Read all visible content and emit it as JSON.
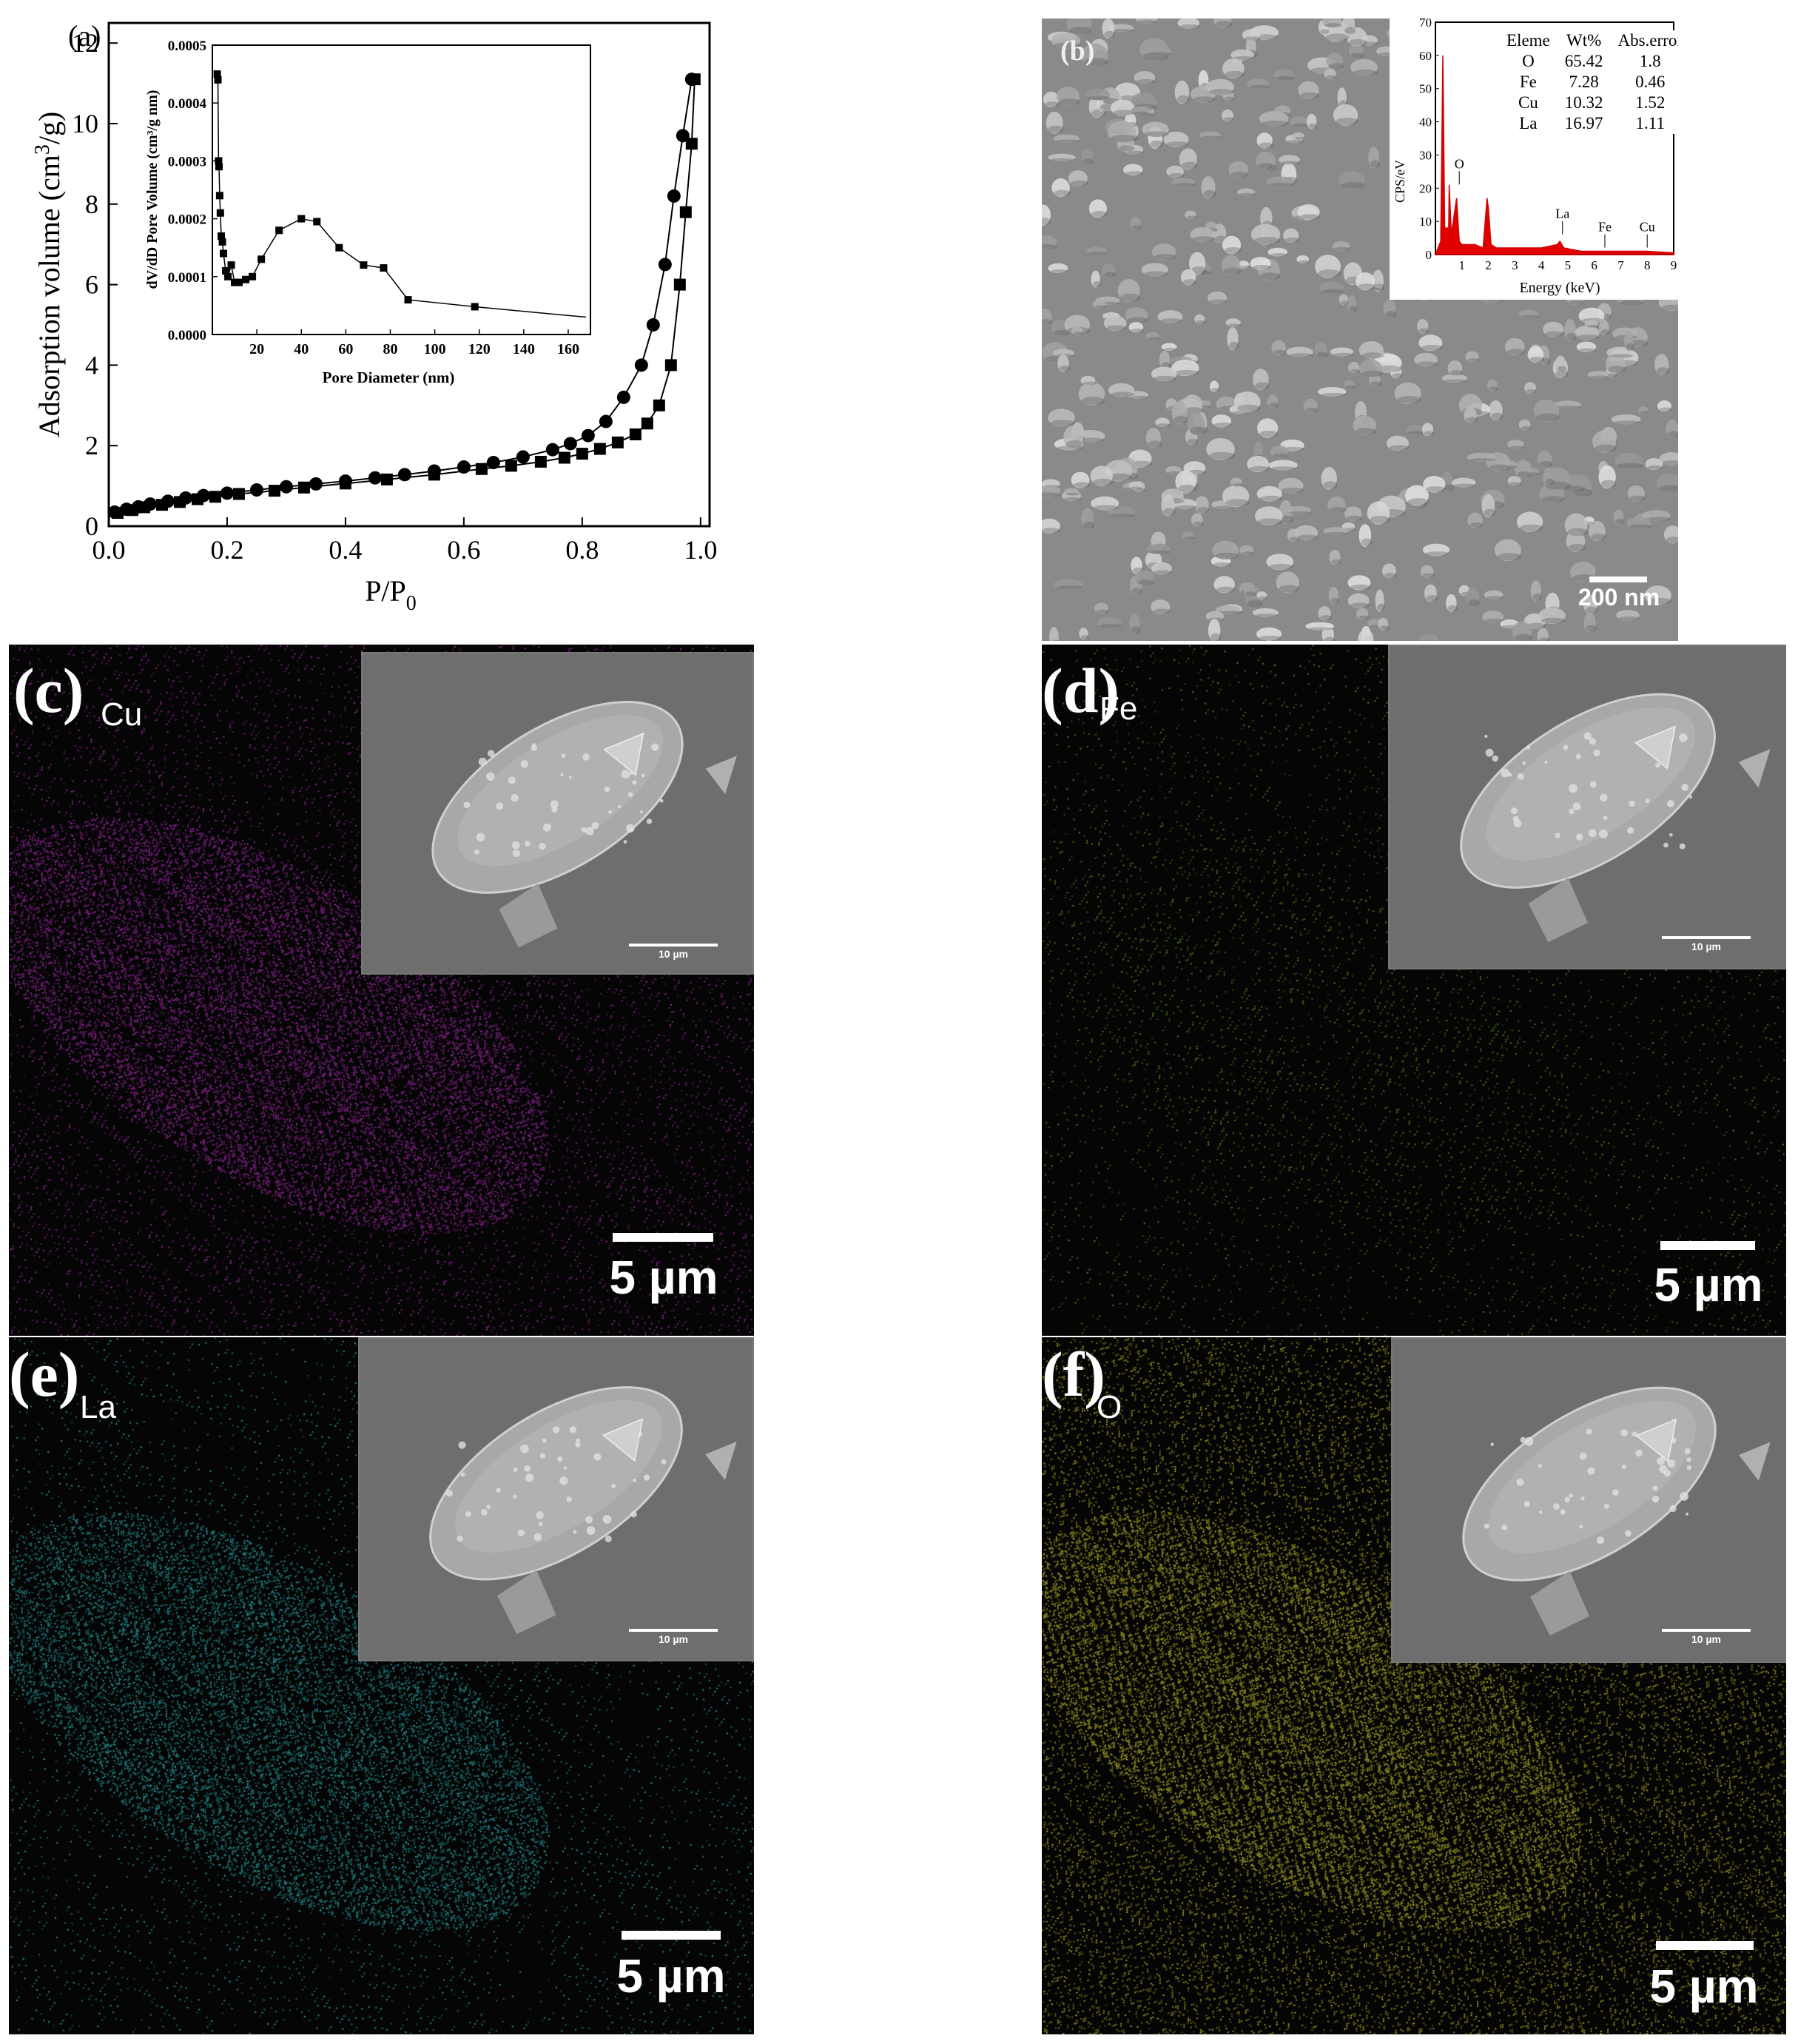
{
  "panel_a": {
    "letter": "(a)",
    "xlabel_main": "P/P",
    "xlabel_sub": "0",
    "ylabel_main": "Adsorption volume (cm",
    "ylabel_sup": "3",
    "ylabel_tail": "/g)",
    "x_ticks": [
      "0.0",
      "0.2",
      "0.4",
      "0.6",
      "0.8",
      "1.0"
    ],
    "y_ticks": [
      "0",
      "2",
      "4",
      "6",
      "8",
      "10",
      "12"
    ],
    "inset": {
      "xlabel": "Pore Diameter (nm)",
      "ylabel": "dV/dD Pore Volume (cm³/g nm)",
      "x_ticks": [
        "20",
        "40",
        "60",
        "80",
        "100",
        "120",
        "140",
        "160"
      ],
      "y_ticks": [
        "0.0000",
        "0.0001",
        "0.0002",
        "0.0003",
        "0.0004",
        "0.0005"
      ]
    }
  },
  "panel_b": {
    "letter": "(b)",
    "scale": "200 nm",
    "eds_headers": [
      "Eleme",
      "Wt%",
      "Abs.error"
    ],
    "eds_rows": [
      [
        "O",
        "65.42",
        "1.8"
      ],
      [
        "Fe",
        "7.28",
        "0.46"
      ],
      [
        "Cu",
        "10.32",
        "1.52"
      ],
      [
        "La",
        "16.97",
        "1.11"
      ]
    ],
    "eds_xlabel": "Energy (keV)",
    "eds_ylabel": "CPS/eV",
    "eds_x_ticks": [
      "1",
      "2",
      "3",
      "4",
      "5",
      "6",
      "7",
      "8",
      "9"
    ],
    "eds_y_ticks": [
      "0",
      "10",
      "20",
      "30",
      "40",
      "50",
      "60",
      "70"
    ],
    "eds_peak_labels": [
      "O",
      "La",
      "Fe",
      "Cu"
    ]
  },
  "maps": [
    {
      "letter": "(c)",
      "element": "Cu",
      "scale": "5 µm",
      "inset_scale": "10 µm",
      "color": "#a02aa8"
    },
    {
      "letter": "(d)",
      "element": "Fe",
      "scale": "5 µm",
      "inset_scale": "10 µm",
      "color": "#5c8a1e"
    },
    {
      "letter": "(e)",
      "element": "La",
      "scale": "5 µm",
      "inset_scale": "10 µm",
      "color": "#2ba5a8"
    },
    {
      "letter": "(f)",
      "element": "O",
      "scale": "5 µm",
      "inset_scale": "10 µm",
      "color": "#b8b22a"
    }
  ],
  "chart_data": [
    {
      "type": "scatter",
      "title": "",
      "xlabel": "P/P0",
      "ylabel": "Adsorption volume (cm3/g)",
      "xlim": [
        0,
        1.0
      ],
      "ylim": [
        0,
        12.5
      ],
      "series": [
        {
          "marker": "circle",
          "x": [
            0.01,
            0.03,
            0.05,
            0.07,
            0.1,
            0.13,
            0.16,
            0.2,
            0.25,
            0.3,
            0.35,
            0.4,
            0.45,
            0.5,
            0.55,
            0.6,
            0.65,
            0.7,
            0.75,
            0.78,
            0.81,
            0.84,
            0.87,
            0.9,
            0.92,
            0.94,
            0.955,
            0.97,
            0.985
          ],
          "y": [
            0.35,
            0.42,
            0.48,
            0.55,
            0.62,
            0.7,
            0.76,
            0.82,
            0.9,
            0.98,
            1.05,
            1.12,
            1.2,
            1.28,
            1.37,
            1.47,
            1.58,
            1.72,
            1.9,
            2.05,
            2.25,
            2.6,
            3.2,
            4.0,
            5.0,
            6.5,
            8.2,
            9.7,
            11.1
          ]
        },
        {
          "marker": "square",
          "x": [
            0.015,
            0.04,
            0.06,
            0.09,
            0.12,
            0.15,
            0.18,
            0.22,
            0.28,
            0.33,
            0.4,
            0.47,
            0.55,
            0.63,
            0.68,
            0.73,
            0.77,
            0.8,
            0.83,
            0.86,
            0.89,
            0.91,
            0.93,
            0.95,
            0.965,
            0.975,
            0.985,
            0.99
          ],
          "y": [
            0.33,
            0.4,
            0.47,
            0.53,
            0.6,
            0.67,
            0.73,
            0.8,
            0.88,
            0.96,
            1.06,
            1.16,
            1.28,
            1.42,
            1.5,
            1.6,
            1.7,
            1.8,
            1.92,
            2.08,
            2.28,
            2.55,
            3.0,
            4.0,
            6.0,
            7.8,
            9.5,
            11.1
          ]
        }
      ]
    },
    {
      "type": "line",
      "title": "",
      "xlabel": "Pore Diameter (nm)",
      "ylabel": "dV/dD Pore Volume (cm³/g nm)",
      "xlim": [
        0,
        170
      ],
      "ylim": [
        0,
        0.0005
      ],
      "series": [
        {
          "x": [
            2.2,
            2.5,
            2.8,
            3.0,
            3.3,
            3.6,
            4.0,
            4.5,
            5.0,
            6.0,
            7.0,
            8.5,
            10,
            12,
            15,
            18,
            22,
            30,
            40,
            47,
            57,
            68,
            77,
            88,
            118,
            168
          ],
          "y": [
            0.00045,
            0.00044,
            0.0003,
            0.00029,
            0.00024,
            0.00021,
            0.00017,
            0.00016,
            0.00014,
            0.00011,
            0.0001,
            0.00012,
            9e-05,
            9e-05,
            9.5e-05,
            0.0001,
            0.00013,
            0.00018,
            0.0002,
            0.000195,
            0.00015,
            0.00012,
            0.000115,
            6e-05,
            4.8e-05,
            3e-05
          ]
        }
      ]
    },
    {
      "type": "line",
      "title": "",
      "xlabel": "Energy (keV)",
      "ylabel": "CPS/eV",
      "xlim": [
        0,
        9
      ],
      "ylim": [
        0,
        70
      ],
      "series": [
        {
          "x": [
            0,
            0.2,
            0.28,
            0.35,
            0.5,
            0.52,
            0.6,
            0.8,
            0.9,
            1.0,
            1.2,
            1.5,
            1.8,
            1.95,
            2.0,
            2.1,
            2.3,
            2.7,
            3.0,
            3.5,
            4.0,
            4.6,
            4.7,
            4.85,
            5.5,
            6.4,
            7.0,
            8.0,
            9.0
          ],
          "y": [
            0,
            4,
            60,
            8,
            8,
            21,
            6,
            17,
            4,
            3,
            3,
            3,
            2,
            17,
            14,
            3,
            2,
            2,
            2,
            2,
            2,
            3,
            4,
            2,
            1,
            1,
            1,
            1,
            0.5
          ]
        }
      ]
    }
  ]
}
